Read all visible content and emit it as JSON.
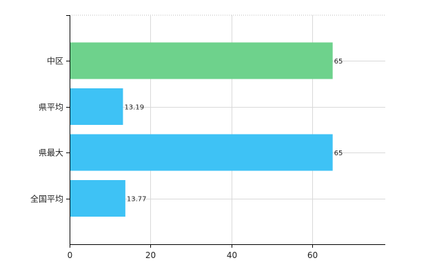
{
  "chart_data": {
    "type": "bar",
    "orientation": "horizontal",
    "categories": [
      "中区",
      "県平均",
      "県最大",
      "全国平均"
    ],
    "values": [
      65,
      13.19,
      65,
      13.77
    ],
    "data_labels": [
      "65",
      "13.19",
      "65",
      "13.77"
    ],
    "bar_colors": [
      "#6ed28c",
      "#3ec2f5",
      "#3ec2f5",
      "#3ec2f5"
    ],
    "xlim": [
      0,
      78
    ],
    "x_ticks": [
      0,
      20,
      40,
      60
    ],
    "grid": true,
    "legend": "none"
  }
}
